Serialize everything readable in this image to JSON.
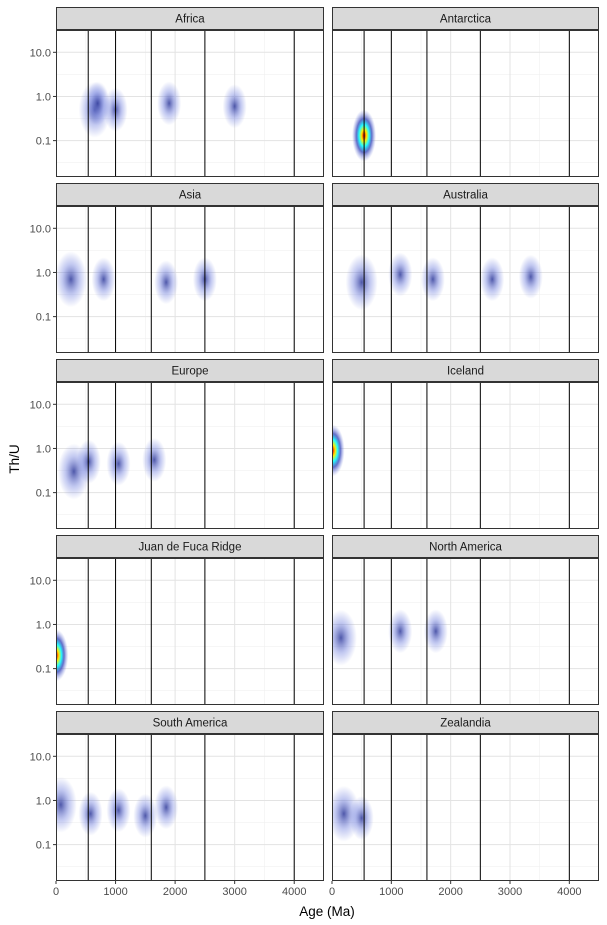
{
  "chart_data": {
    "type": "scatter",
    "subtype": "faceted density scatter",
    "title": "",
    "xlabel": "Age (Ma)",
    "ylabel": "Th/U",
    "xlim": [
      0,
      4500
    ],
    "ylim": [
      0.015,
      32
    ],
    "yscale": "log",
    "x_ticks": [
      "0",
      "1000",
      "2000",
      "3000",
      "4000"
    ],
    "y_ticks": [
      "0.1",
      "1.0",
      "10.0"
    ],
    "grid": true,
    "reference_lines_x": [
      541,
      1000,
      1600,
      2500,
      4000
    ],
    "palette": [
      "#7b89e0",
      "#2f3fb8",
      "#18ffff",
      "#ffee00",
      "#ff0000"
    ],
    "facets": [
      {
        "name": "Africa",
        "points": [
          [
            650,
            0.5
          ],
          [
            700,
            0.7
          ],
          [
            1000,
            0.5
          ],
          [
            1900,
            0.7
          ],
          [
            3000,
            0.6
          ]
        ]
      },
      {
        "name": "Antarctica",
        "points": [
          [
            540,
            0.13
          ]
        ]
      },
      {
        "name": "Asia",
        "points": [
          [
            250,
            0.7
          ],
          [
            800,
            0.7
          ],
          [
            1850,
            0.6
          ],
          [
            2500,
            0.7
          ]
        ]
      },
      {
        "name": "Australia",
        "points": [
          [
            500,
            0.6
          ],
          [
            1150,
            0.9
          ],
          [
            1700,
            0.7
          ],
          [
            2700,
            0.7
          ],
          [
            3350,
            0.8
          ]
        ]
      },
      {
        "name": "Europe",
        "points": [
          [
            300,
            0.3
          ],
          [
            550,
            0.5
          ],
          [
            1050,
            0.45
          ],
          [
            1650,
            0.55
          ]
        ]
      },
      {
        "name": "Iceland",
        "points": [
          [
            10,
            0.9
          ]
        ]
      },
      {
        "name": "Juan de Fuca Ridge",
        "points": [
          [
            5,
            0.2
          ]
        ]
      },
      {
        "name": "North America",
        "points": [
          [
            150,
            0.5
          ],
          [
            1150,
            0.7
          ],
          [
            1750,
            0.7
          ]
        ]
      },
      {
        "name": "South America",
        "points": [
          [
            80,
            0.8
          ],
          [
            580,
            0.5
          ],
          [
            1050,
            0.6
          ],
          [
            1500,
            0.45
          ],
          [
            1850,
            0.7
          ]
        ]
      },
      {
        "name": "Zealandia",
        "points": [
          [
            200,
            0.5
          ],
          [
            500,
            0.4
          ]
        ]
      }
    ]
  }
}
